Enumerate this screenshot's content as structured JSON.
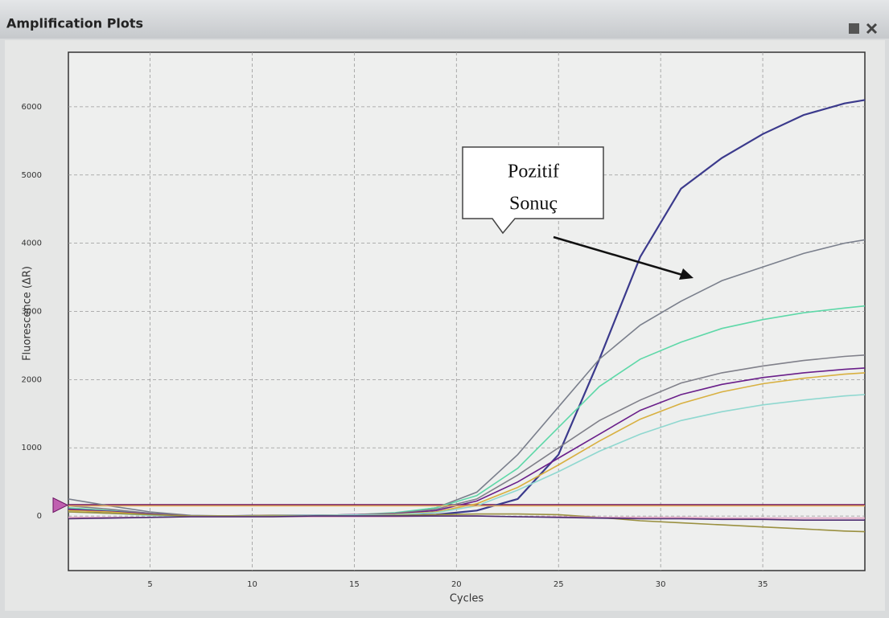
{
  "window": {
    "title": "Amplification Plots"
  },
  "chart_data": {
    "type": "line",
    "x_label": "Cycles",
    "y_label": "Fluorescence (ΔR)",
    "annotation": {
      "lines": [
        "Pozitif",
        "Sonuç"
      ]
    },
    "x": [
      1,
      3,
      5,
      7,
      9,
      11,
      13,
      15,
      17,
      19,
      21,
      23,
      25,
      27,
      29,
      31,
      33,
      35,
      37,
      39,
      40
    ],
    "xlim": [
      1,
      40
    ],
    "xticks": [
      5,
      10,
      15,
      20,
      25,
      30,
      35
    ],
    "ylim": [
      -800,
      6800
    ],
    "yticks": [
      0,
      1000,
      2000,
      3000,
      4000,
      5000,
      6000
    ],
    "grid": true,
    "threshold": 160,
    "threshold_color": "#6a1060",
    "series": [
      {
        "color": "#3b3a8c",
        "values": [
          100,
          50,
          20,
          0,
          0,
          10,
          10,
          10,
          10,
          20,
          80,
          250,
          900,
          2300,
          3800,
          4800,
          5250,
          5600,
          5880,
          6050,
          6100
        ]
      },
      {
        "color": "#7a7f8c",
        "values": [
          250,
          150,
          60,
          10,
          0,
          10,
          10,
          20,
          40,
          120,
          350,
          900,
          1600,
          2300,
          2800,
          3150,
          3450,
          3650,
          3850,
          4000,
          4050
        ]
      },
      {
        "color": "#5ed8a8",
        "values": [
          120,
          80,
          30,
          0,
          0,
          10,
          10,
          20,
          50,
          120,
          300,
          700,
          1300,
          1900,
          2300,
          2550,
          2750,
          2880,
          2980,
          3050,
          3080
        ]
      },
      {
        "color": "#80808a",
        "values": [
          150,
          100,
          40,
          5,
          0,
          10,
          10,
          20,
          40,
          100,
          250,
          600,
          1000,
          1400,
          1700,
          1950,
          2100,
          2200,
          2280,
          2340,
          2360
        ]
      },
      {
        "color": "#6a1f8a",
        "values": [
          100,
          70,
          30,
          0,
          0,
          10,
          10,
          20,
          30,
          80,
          220,
          500,
          850,
          1200,
          1550,
          1780,
          1930,
          2030,
          2100,
          2150,
          2170
        ]
      },
      {
        "color": "#d8b040",
        "values": [
          80,
          60,
          20,
          0,
          0,
          10,
          10,
          15,
          25,
          60,
          180,
          420,
          750,
          1100,
          1420,
          1650,
          1820,
          1940,
          2020,
          2080,
          2100
        ]
      },
      {
        "color": "#8fd8d0",
        "values": [
          60,
          40,
          10,
          0,
          0,
          5,
          10,
          15,
          20,
          50,
          150,
          380,
          650,
          950,
          1200,
          1400,
          1530,
          1630,
          1700,
          1760,
          1780
        ]
      },
      {
        "color": "#e8b060",
        "values": [
          150,
          150,
          150,
          150,
          150,
          150,
          150,
          150,
          150,
          150,
          150,
          150,
          150,
          150,
          150,
          150,
          150,
          150,
          150,
          150,
          150
        ]
      },
      {
        "color": "#9a9040",
        "values": [
          60,
          40,
          20,
          0,
          0,
          0,
          0,
          0,
          10,
          20,
          30,
          30,
          20,
          -20,
          -70,
          -100,
          -130,
          -160,
          -190,
          -220,
          -230
        ]
      },
      {
        "color": "#e0a0c0",
        "values": [
          -20,
          -20,
          -20,
          -10,
          -10,
          -10,
          -10,
          -10,
          -10,
          0,
          0,
          -10,
          -10,
          -20,
          -20,
          -20,
          -30,
          -30,
          -30,
          -30,
          -30
        ]
      },
      {
        "color": "#4a2a70",
        "values": [
          -40,
          -30,
          -20,
          -10,
          -10,
          -10,
          0,
          0,
          0,
          0,
          0,
          -10,
          -20,
          -30,
          -40,
          -40,
          -50,
          -50,
          -60,
          -60,
          -60
        ]
      }
    ]
  }
}
